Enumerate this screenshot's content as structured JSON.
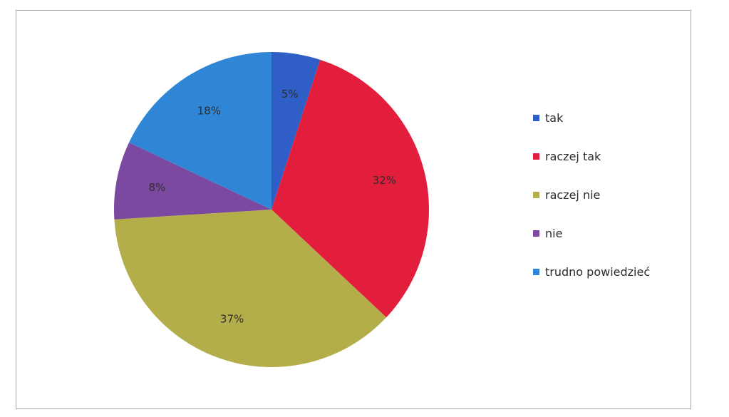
{
  "chart_data": {
    "type": "pie",
    "title": "",
    "start_angle_deg": 0,
    "direction": "clockwise",
    "slices": [
      {
        "label": "tak",
        "value": 5,
        "value_label": "5%",
        "color": "#2f5fc6"
      },
      {
        "label": "raczej tak",
        "value": 32,
        "value_label": "32%",
        "color": "#e21e3c"
      },
      {
        "label": "raczej nie",
        "value": 37,
        "value_label": "37%",
        "color": "#b3ae4a"
      },
      {
        "label": "nie",
        "value": 8,
        "value_label": "8%",
        "color": "#7b4aa0"
      },
      {
        "label": "trudno powiedzieć",
        "value": 18,
        "value_label": "18%",
        "color": "#2f86d6"
      }
    ],
    "legend": {
      "placement": "right",
      "entries": [
        "tak",
        "raczej tak",
        "raczej nie",
        "nie",
        "trudno powiedzieć"
      ]
    }
  }
}
